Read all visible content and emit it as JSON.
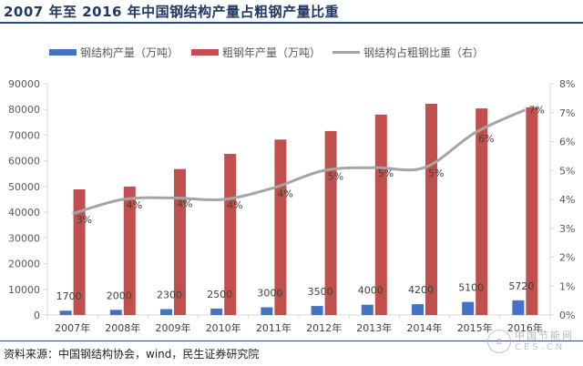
{
  "title": "2007 年至 2016 年中国钢结构产量占粗钢产量比重",
  "source": "资料来源：中国钢结构协会，wind，民生证券研究院",
  "watermark": {
    "line1": "中国节能网",
    "line2": "CES.CN",
    "icon": "e"
  },
  "colors": {
    "steel_structure": "#4472c4",
    "crude_steel": "#c0504d",
    "ratio": "#a5a5a5",
    "title": "#1f3864"
  },
  "chart_data": {
    "type": "bar",
    "title": "2007 年至 2016 年中国钢结构产量占粗钢产量比重",
    "categories": [
      "2007年",
      "2008年",
      "2009年",
      "2010年",
      "2011年",
      "2012年",
      "2013年",
      "2014年",
      "2015年",
      "2016年"
    ],
    "series": [
      {
        "name": "钢结构产量（万吨）",
        "type": "bar",
        "axis": "left",
        "values": [
          1700,
          2000,
          2300,
          2500,
          3000,
          3500,
          4000,
          4200,
          5100,
          5720
        ],
        "labels": [
          "1700",
          "2000",
          "2300",
          "2500",
          "3000",
          "3500",
          "4000",
          "4200",
          "5100",
          "5720"
        ]
      },
      {
        "name": "粗钢年产量（万吨）",
        "type": "bar",
        "axis": "left",
        "values": [
          48900,
          50000,
          56800,
          62700,
          68300,
          71600,
          78000,
          82200,
          80400,
          80800
        ]
      },
      {
        "name": "钢结构占粗钢比重（右）",
        "type": "line",
        "axis": "right",
        "values": [
          3.5,
          4.0,
          4.05,
          4.0,
          4.4,
          5.0,
          5.1,
          5.1,
          6.3,
          7.1
        ],
        "labels": [
          "3%",
          "4%",
          "4%",
          "4%",
          "4%",
          "5%",
          "5%",
          "5%",
          "6%",
          "7%"
        ]
      }
    ],
    "ylim_left": [
      0,
      90000
    ],
    "yticks_left": [
      "0",
      "10000",
      "20000",
      "30000",
      "40000",
      "50000",
      "60000",
      "70000",
      "80000",
      "90000"
    ],
    "ylim_right": [
      0,
      8
    ],
    "yticks_right": [
      "0%",
      "1%",
      "2%",
      "3%",
      "4%",
      "5%",
      "6%",
      "7%",
      "8%"
    ],
    "xlabel": "",
    "ylabel": "",
    "grid": false,
    "legend": "top"
  }
}
